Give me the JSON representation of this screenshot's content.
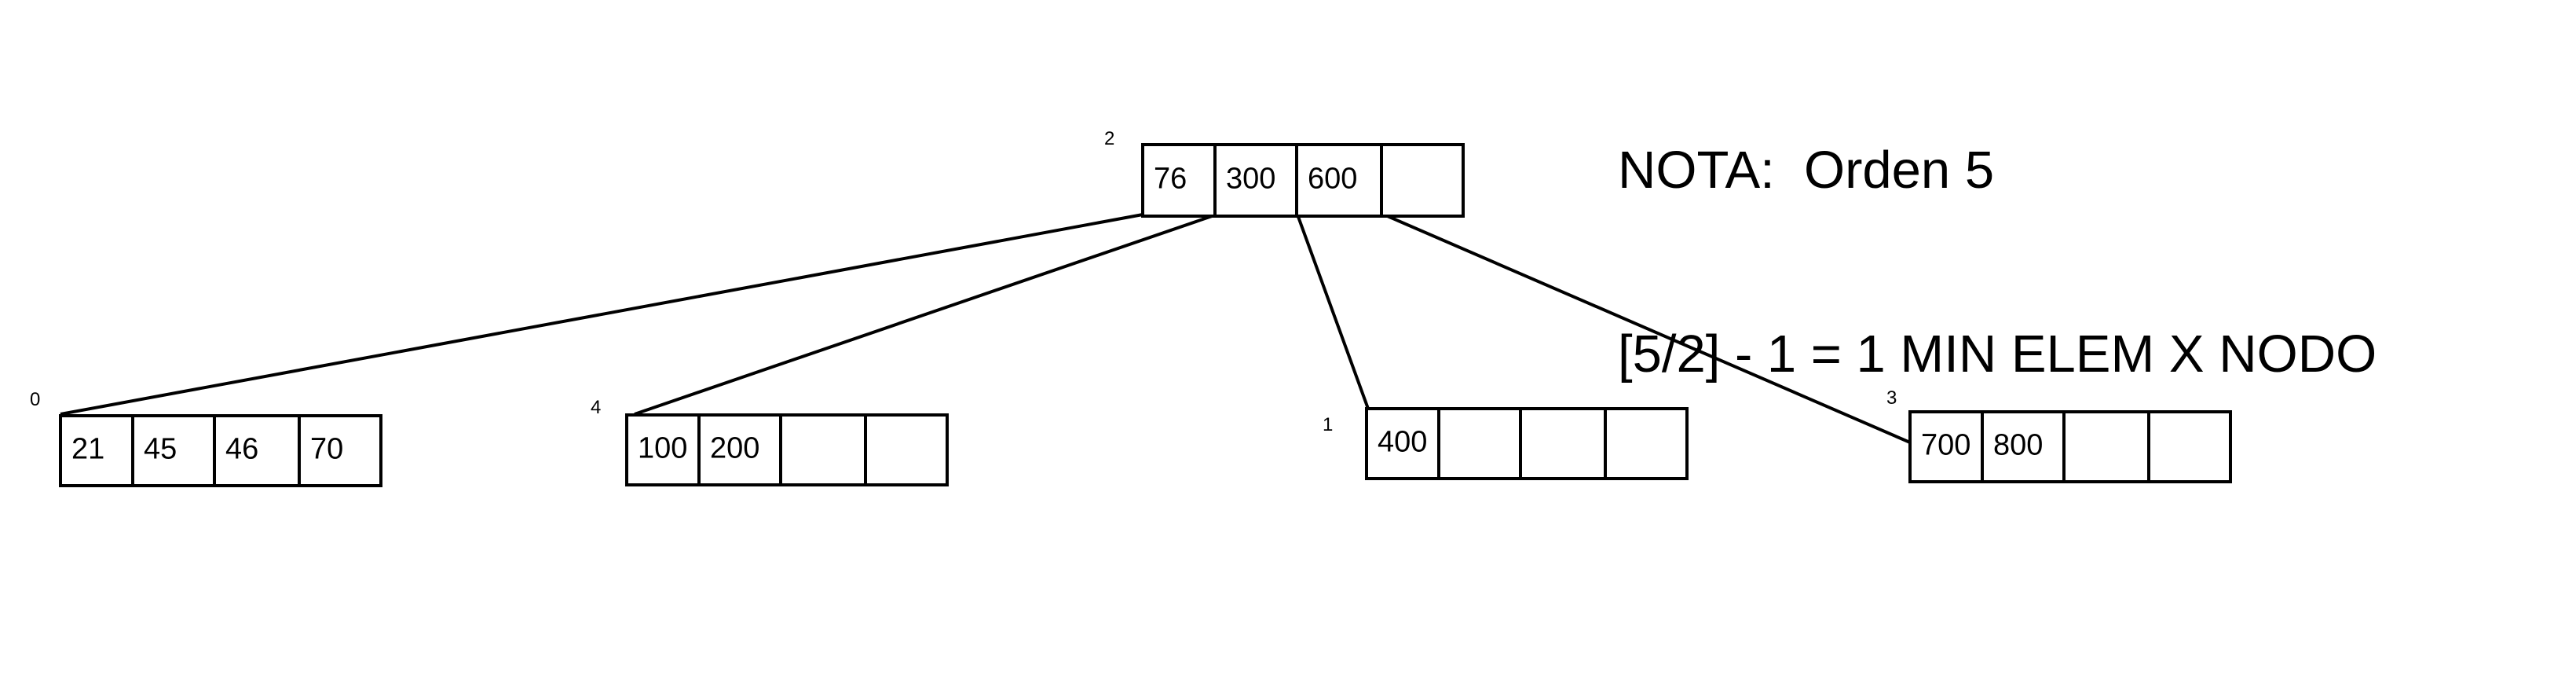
{
  "note": {
    "line1": "NOTA:  Orden 5",
    "line2": "[5/2] - 1 = 1 MIN ELEM X NODO"
  },
  "nodes": [
    {
      "id": "2",
      "keys": [
        "76",
        "300",
        "600",
        ""
      ]
    },
    {
      "id": "0",
      "keys": [
        "21",
        "45",
        "46",
        "70"
      ]
    },
    {
      "id": "4",
      "keys": [
        "100",
        "200",
        "",
        ""
      ]
    },
    {
      "id": "1",
      "keys": [
        "400",
        "",
        "",
        ""
      ]
    },
    {
      "id": "3",
      "keys": [
        "700",
        "800",
        "",
        ""
      ]
    }
  ],
  "edges": [
    {
      "from": "2",
      "to": "0"
    },
    {
      "from": "2",
      "to": "4"
    },
    {
      "from": "2",
      "to": "1"
    },
    {
      "from": "2",
      "to": "3"
    }
  ]
}
